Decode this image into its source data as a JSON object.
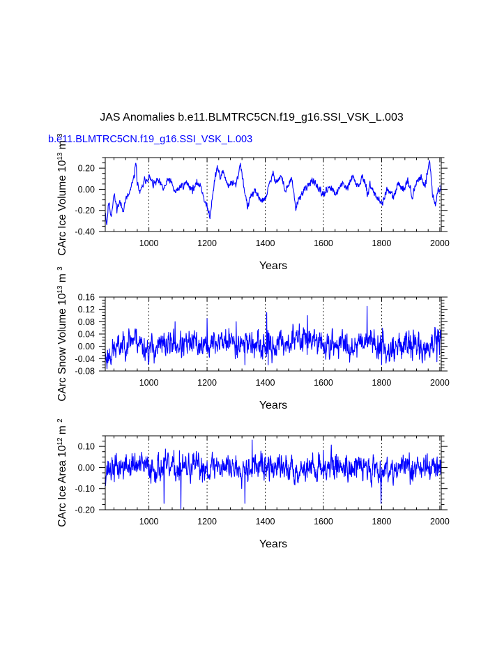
{
  "title": "JAS Anomalies b.e11.BLMTRC5CN.f19_g16.SSI_VSK_L.003",
  "subtitle": "b.e11.BLMTRC5CN.f19_g16.SSI_VSK_L.003",
  "colors": {
    "line": "#0000ff",
    "subtitle": "#0000ff",
    "axis": "#000000",
    "grid": "#000000"
  },
  "chart_data": [
    {
      "type": "line",
      "series_name": "CArc Ice Volume",
      "ylabel": "CArc Ice Volume 10^13 m^3",
      "ylabel_text": "CArc Ice Volume 10",
      "ylabel_exp1": "13",
      "ylabel_unit": "m",
      "ylabel_exp2": "3",
      "xlabel": "Years",
      "xlim": [
        850,
        2005
      ],
      "ylim": [
        -0.4,
        0.3
      ],
      "yticks": [
        -0.4,
        -0.2,
        0.0,
        0.2
      ],
      "yticklabels": [
        "-0.40",
        "-0.20",
        "0.00",
        "0.20"
      ],
      "xticks": [
        1000,
        1200,
        1400,
        1600,
        1800,
        2000
      ],
      "xticklabels": [
        "1000",
        "1200",
        "1400",
        "1600",
        "1800",
        "2000"
      ],
      "grid_x": [
        1000,
        1200,
        1400,
        1600,
        1800,
        2000
      ],
      "keypoints": [
        [
          850,
          -0.2
        ],
        [
          855,
          -0.33
        ],
        [
          862,
          -0.12
        ],
        [
          870,
          -0.25
        ],
        [
          880,
          -0.05
        ],
        [
          890,
          -0.18
        ],
        [
          900,
          -0.12
        ],
        [
          910,
          -0.2
        ],
        [
          920,
          -0.1
        ],
        [
          930,
          -0.06
        ],
        [
          940,
          0.02
        ],
        [
          950,
          0.12
        ],
        [
          955,
          0.28
        ],
        [
          960,
          0.06
        ],
        [
          970,
          -0.04
        ],
        [
          985,
          0.08
        ],
        [
          1000,
          0.12
        ],
        [
          1015,
          0.04
        ],
        [
          1030,
          0.08
        ],
        [
          1050,
          0.0
        ],
        [
          1070,
          0.1
        ],
        [
          1090,
          -0.03
        ],
        [
          1110,
          0.03
        ],
        [
          1130,
          0.06
        ],
        [
          1150,
          0.0
        ],
        [
          1170,
          0.06
        ],
        [
          1180,
          0.02
        ],
        [
          1195,
          -0.14
        ],
        [
          1210,
          -0.25
        ],
        [
          1220,
          -0.02
        ],
        [
          1235,
          0.22
        ],
        [
          1245,
          0.1
        ],
        [
          1255,
          0.18
        ],
        [
          1270,
          0.04
        ],
        [
          1285,
          0.06
        ],
        [
          1300,
          0.04
        ],
        [
          1315,
          0.25
        ],
        [
          1325,
          0.05
        ],
        [
          1340,
          -0.18
        ],
        [
          1350,
          -0.06
        ],
        [
          1365,
          -0.03
        ],
        [
          1380,
          -0.08
        ],
        [
          1395,
          -0.12
        ],
        [
          1410,
          0.0
        ],
        [
          1425,
          0.14
        ],
        [
          1440,
          0.08
        ],
        [
          1455,
          0.12
        ],
        [
          1470,
          -0.02
        ],
        [
          1490,
          0.1
        ],
        [
          1505,
          -0.18
        ],
        [
          1520,
          -0.06
        ],
        [
          1545,
          0.02
        ],
        [
          1560,
          0.1
        ],
        [
          1580,
          0.0
        ],
        [
          1600,
          -0.05
        ],
        [
          1620,
          0.03
        ],
        [
          1645,
          -0.06
        ],
        [
          1660,
          0.06
        ],
        [
          1680,
          0.0
        ],
        [
          1700,
          0.12
        ],
        [
          1720,
          0.02
        ],
        [
          1735,
          0.13
        ],
        [
          1750,
          -0.04
        ],
        [
          1760,
          0.04
        ],
        [
          1780,
          -0.06
        ],
        [
          1800,
          -0.14
        ],
        [
          1820,
          0.0
        ],
        [
          1840,
          -0.08
        ],
        [
          1860,
          0.06
        ],
        [
          1875,
          0.0
        ],
        [
          1890,
          0.1
        ],
        [
          1905,
          -0.08
        ],
        [
          1920,
          0.06
        ],
        [
          1935,
          0.12
        ],
        [
          1950,
          0.04
        ],
        [
          1965,
          0.28
        ],
        [
          1975,
          -0.05
        ],
        [
          1985,
          -0.15
        ],
        [
          1995,
          0.0
        ],
        [
          2005,
          0.02
        ]
      ],
      "noise_amplitude": 0.05,
      "seed": 11
    },
    {
      "type": "line",
      "series_name": "CArc Snow Volume",
      "ylabel": "CArc Snow Volume 10^13 m^3",
      "ylabel_text": "CArc Snow Volume 10",
      "ylabel_exp1": "13",
      "ylabel_unit": "m",
      "ylabel_exp2": "3",
      "xlabel": "Years",
      "xlim": [
        850,
        2005
      ],
      "ylim": [
        -0.08,
        0.16
      ],
      "yticks": [
        -0.08,
        -0.04,
        0.0,
        0.04,
        0.08,
        0.12,
        0.16
      ],
      "yticklabels": [
        "-0.08",
        "-0.04",
        "0.00",
        "0.04",
        "0.08",
        "0.12",
        "0.16"
      ],
      "xticks": [
        1000,
        1200,
        1400,
        1600,
        1800,
        2000
      ],
      "xticklabels": [
        "1000",
        "1200",
        "1400",
        "1600",
        "1800",
        "2000"
      ],
      "grid_x": [
        1000,
        1200,
        1400,
        1600,
        1800,
        2000
      ],
      "keypoints": [
        [
          850,
          -0.04
        ],
        [
          870,
          -0.02
        ],
        [
          900,
          0.0
        ],
        [
          930,
          0.02
        ],
        [
          955,
          0.03
        ],
        [
          980,
          0.0
        ],
        [
          1000,
          -0.01
        ],
        [
          1040,
          0.0
        ],
        [
          1080,
          0.01
        ],
        [
          1120,
          0.0
        ],
        [
          1160,
          0.01
        ],
        [
          1200,
          0.0
        ],
        [
          1250,
          0.02
        ],
        [
          1300,
          0.01
        ],
        [
          1340,
          0.02
        ],
        [
          1380,
          -0.01
        ],
        [
          1420,
          0.0
        ],
        [
          1460,
          0.01
        ],
        [
          1500,
          0.02
        ],
        [
          1540,
          0.03
        ],
        [
          1580,
          0.01
        ],
        [
          1620,
          0.0
        ],
        [
          1660,
          0.01
        ],
        [
          1700,
          0.0
        ],
        [
          1745,
          0.03
        ],
        [
          1780,
          0.01
        ],
        [
          1820,
          -0.01
        ],
        [
          1860,
          0.0
        ],
        [
          1900,
          0.01
        ],
        [
          1940,
          -0.01
        ],
        [
          1970,
          0.0
        ],
        [
          2005,
          0.02
        ]
      ],
      "noise_amplitude": 0.06,
      "spikes": [
        [
          1750,
          0.13
        ],
        [
          1545,
          0.1
        ],
        [
          1405,
          0.11
        ],
        [
          1200,
          0.09
        ],
        [
          1300,
          0.08
        ],
        [
          1090,
          0.08
        ],
        [
          1330,
          -0.06
        ],
        [
          1410,
          -0.06
        ],
        [
          1800,
          -0.06
        ],
        [
          1990,
          -0.05
        ]
      ],
      "seed": 23
    },
    {
      "type": "line",
      "series_name": "CArc Ice Area",
      "ylabel": "CArc Ice Area 10^12 m^2",
      "ylabel_text": "CArc Ice Area 10",
      "ylabel_exp1": "12",
      "ylabel_unit": "m",
      "ylabel_exp2": "2",
      "xlabel": "Years",
      "xlim": [
        850,
        2005
      ],
      "ylim": [
        -0.2,
        0.15
      ],
      "yticks": [
        -0.2,
        -0.1,
        0.0,
        0.1
      ],
      "yticklabels": [
        "-0.20",
        "-0.10",
        "0.00",
        "0.10"
      ],
      "xticks": [
        1000,
        1200,
        1400,
        1600,
        1800,
        2000
      ],
      "xticklabels": [
        "1000",
        "1200",
        "1400",
        "1600",
        "1800",
        "2000"
      ],
      "grid_x": [
        1000,
        1200,
        1400,
        1600,
        1800,
        2000
      ],
      "keypoints": [
        [
          850,
          -0.01
        ],
        [
          900,
          0.0
        ],
        [
          950,
          0.01
        ],
        [
          1000,
          0.0
        ],
        [
          1050,
          0.0
        ],
        [
          1100,
          -0.01
        ],
        [
          1150,
          0.0
        ],
        [
          1200,
          0.0
        ],
        [
          1250,
          0.01
        ],
        [
          1300,
          0.0
        ],
        [
          1350,
          0.01
        ],
        [
          1400,
          0.0
        ],
        [
          1450,
          0.0
        ],
        [
          1500,
          -0.01
        ],
        [
          1550,
          0.0
        ],
        [
          1600,
          0.0
        ],
        [
          1650,
          0.01
        ],
        [
          1700,
          0.0
        ],
        [
          1750,
          0.0
        ],
        [
          1800,
          -0.01
        ],
        [
          1850,
          0.0
        ],
        [
          1900,
          0.0
        ],
        [
          1950,
          0.0
        ],
        [
          2005,
          0.0
        ]
      ],
      "noise_amplitude": 0.09,
      "spikes": [
        [
          1110,
          -0.2
        ],
        [
          1052,
          -0.17
        ],
        [
          1330,
          -0.17
        ],
        [
          1798,
          -0.17
        ],
        [
          1355,
          0.13
        ],
        [
          1105,
          0.08
        ],
        [
          1600,
          0.08
        ],
        [
          1895,
          0.07
        ]
      ],
      "seed": 37
    }
  ]
}
